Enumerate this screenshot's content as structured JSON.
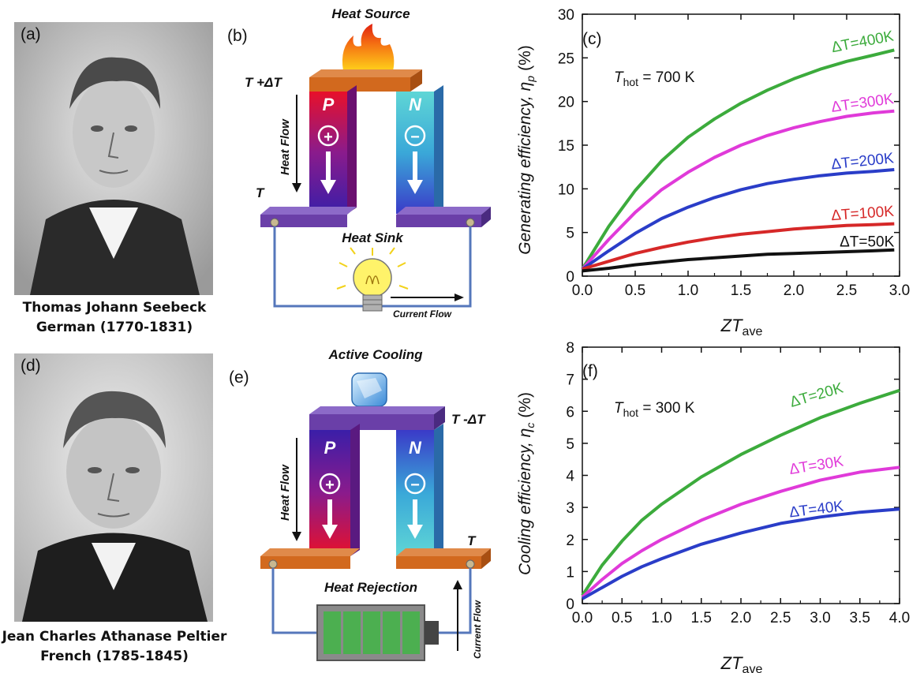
{
  "panel_a": {
    "label": "(a)",
    "caption_name": "Thomas Johann Seebeck",
    "caption_dates": "German (1770-1831)"
  },
  "panel_b": {
    "label": "(b)",
    "title": "Heat Source",
    "hot_temp": "T +ΔT",
    "cold_temp": "T",
    "p_leg": "P",
    "n_leg": "N",
    "p_sign": "+",
    "n_sign": "−",
    "heat_flow": "Heat Flow",
    "sink": "Heat Sink",
    "current": "Current Flow",
    "colors": {
      "hot_plate": "#d2691e",
      "cold_plate": "#6a3fa8",
      "wire": "#5577bb"
    }
  },
  "panel_d": {
    "label": "(d)",
    "caption_name": "Jean Charles Athanase Peltier",
    "caption_dates": "French (1785-1845)"
  },
  "panel_e": {
    "label": "(e)",
    "title": "Active Cooling",
    "cold_temp": "T -ΔT",
    "hot_temp": "T",
    "p_leg": "P",
    "n_leg": "N",
    "p_sign": "+",
    "n_sign": "−",
    "heat_flow": "Heat Flow",
    "rejection": "Heat Rejection",
    "current": "Current Flow",
    "colors": {
      "hot_plate": "#d2691e",
      "cold_plate": "#6a3fa8",
      "battery": "#4caf50"
    }
  },
  "chart_data": [
    {
      "type": "line",
      "panel_label": "(c)",
      "xlabel_main": "ZT",
      "xlabel_sub": "ave",
      "ylabel": "Generating efficiency, η",
      "ylabel_sub": "p",
      "ylabel_unit": "(%)",
      "annotation_main": "T",
      "annotation_sub": "hot",
      "annotation_rest": " = 700 K",
      "xlim": [
        0,
        3.0
      ],
      "ylim": [
        0,
        30
      ],
      "xticks": [
        "0.0",
        "0.5",
        "1.0",
        "1.5",
        "2.0",
        "2.5",
        "3.0"
      ],
      "yticks": [
        "0",
        "5",
        "10",
        "15",
        "20",
        "25",
        "30"
      ],
      "x": [
        0,
        0.25,
        0.5,
        0.75,
        1.0,
        1.25,
        1.5,
        1.75,
        2.0,
        2.25,
        2.5,
        2.75,
        2.95
      ],
      "series": [
        {
          "name": "ΔT=400K",
          "color": "#3cab3c",
          "values": [
            0.8,
            5.7,
            9.8,
            13.2,
            15.9,
            18.0,
            19.8,
            21.3,
            22.6,
            23.7,
            24.6,
            25.3,
            25.9
          ]
        },
        {
          "name": "ΔT=300K",
          "color": "#e03ad9",
          "values": [
            0.8,
            4.2,
            7.3,
            9.9,
            11.9,
            13.6,
            15.0,
            16.1,
            17.0,
            17.7,
            18.3,
            18.7,
            18.9
          ]
        },
        {
          "name": "ΔT=200K",
          "color": "#2a3dc8",
          "values": [
            0.8,
            2.9,
            4.9,
            6.6,
            7.9,
            9.0,
            9.9,
            10.6,
            11.1,
            11.5,
            11.8,
            12.0,
            12.2
          ]
        },
        {
          "name": "ΔT=100K",
          "color": "#d62828",
          "values": [
            0.8,
            1.7,
            2.6,
            3.3,
            3.9,
            4.4,
            4.8,
            5.1,
            5.4,
            5.6,
            5.8,
            5.9,
            6.0
          ]
        },
        {
          "name": "ΔT=50K",
          "color": "#111111",
          "values": [
            0.6,
            0.9,
            1.3,
            1.6,
            1.9,
            2.1,
            2.3,
            2.5,
            2.6,
            2.7,
            2.8,
            2.9,
            3.0
          ]
        }
      ]
    },
    {
      "type": "line",
      "panel_label": "(f)",
      "xlabel_main": "ZT",
      "xlabel_sub": "ave",
      "ylabel": "Cooling efficiency, η",
      "ylabel_sub": "c",
      "ylabel_unit": "(%)",
      "annotation_main": "T",
      "annotation_sub": "hot",
      "annotation_rest": " = 300 K",
      "xlim": [
        0,
        4.0
      ],
      "ylim": [
        0,
        8
      ],
      "xticks": [
        "0.0",
        "0.5",
        "1.0",
        "1.5",
        "2.0",
        "2.5",
        "3.0",
        "3.5",
        "4.0"
      ],
      "yticks": [
        "0",
        "1",
        "2",
        "3",
        "4",
        "5",
        "6",
        "7",
        "8"
      ],
      "x": [
        0,
        0.25,
        0.5,
        0.75,
        1.0,
        1.5,
        2.0,
        2.5,
        3.0,
        3.5,
        4.0
      ],
      "series": [
        {
          "name": "ΔT=20K",
          "color": "#3cab3c",
          "values": [
            0.25,
            1.2,
            1.95,
            2.6,
            3.1,
            3.95,
            4.65,
            5.25,
            5.8,
            6.25,
            6.65
          ]
        },
        {
          "name": "ΔT=30K",
          "color": "#e03ad9",
          "values": [
            0.2,
            0.75,
            1.25,
            1.65,
            2.0,
            2.6,
            3.1,
            3.5,
            3.85,
            4.1,
            4.25
          ]
        },
        {
          "name": "ΔT=40K",
          "color": "#2a3dc8",
          "values": [
            0.15,
            0.5,
            0.85,
            1.15,
            1.4,
            1.85,
            2.2,
            2.5,
            2.7,
            2.85,
            2.95
          ]
        }
      ]
    }
  ]
}
